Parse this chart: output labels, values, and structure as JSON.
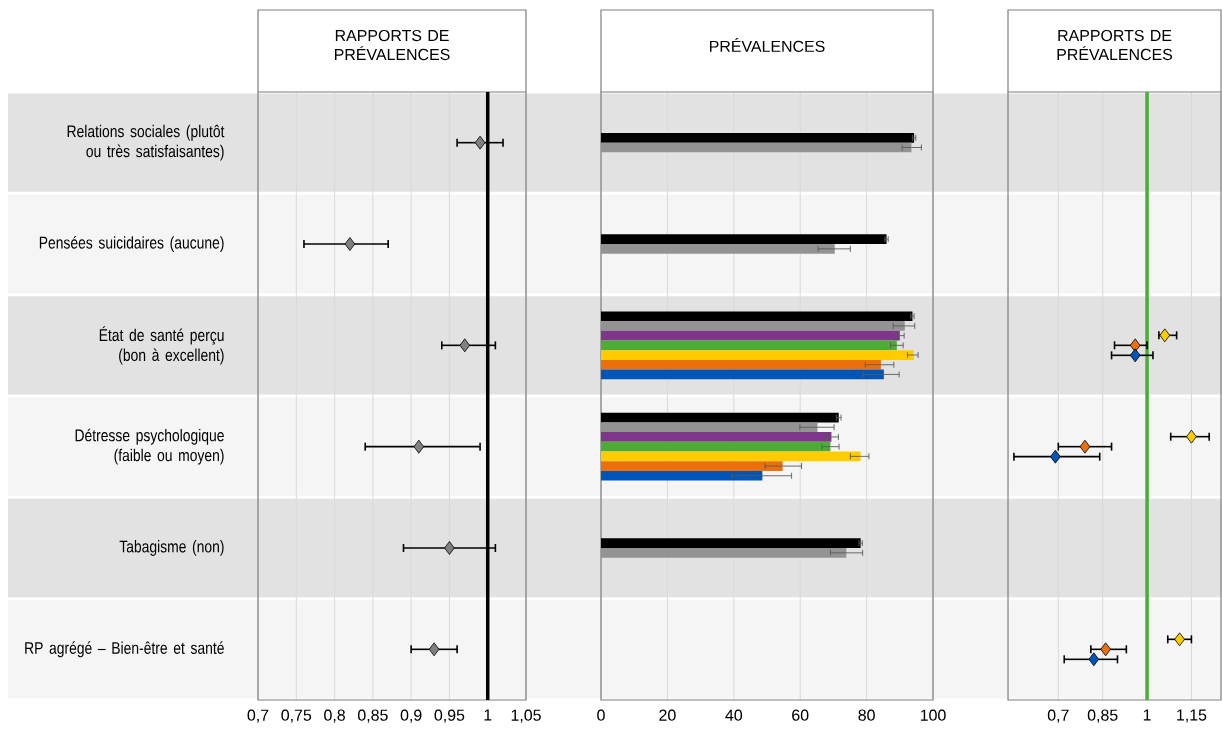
{
  "chart_data": [
    {
      "type": "scatter",
      "orientation": "horizontal",
      "title": "RAPPORTS DE PRÉVALENCES",
      "categories": [
        "Relations sociales (plutôt ou très satisfaisantes)",
        "Pensées suicidaires (aucune)",
        "État de santé perçu (bon à excellent)",
        "Détresse psychologique (faible ou moyen)",
        "Tabagisme (non)",
        "RP agrégé – Bien-être et santé"
      ],
      "values": [
        0.99,
        0.82,
        0.97,
        0.91,
        0.95,
        0.93
      ],
      "errors": [
        [
          0.96,
          1.02
        ],
        [
          0.76,
          0.87
        ],
        [
          0.94,
          1.01
        ],
        [
          0.84,
          0.99
        ],
        [
          0.89,
          1.01
        ],
        [
          0.9,
          0.96
        ]
      ],
      "color": "#808080",
      "marker": "diamond",
      "xlim": [
        0.7,
        1.05
      ],
      "xticks": [
        {
          "value": 0.7,
          "label": "0,7"
        },
        {
          "value": 0.75,
          "label": "0,75"
        },
        {
          "value": 0.8,
          "label": "0,8"
        },
        {
          "value": 0.85,
          "label": "0,85"
        },
        {
          "value": 0.9,
          "label": "0,9"
        },
        {
          "value": 0.95,
          "label": "0,95"
        },
        1,
        {
          "value": 1.05,
          "label": "1,05"
        }
      ],
      "ref_lines": [
        {
          "axis": "x",
          "value": 1,
          "color": "#000000"
        }
      ],
      "grid": "x"
    },
    {
      "type": "bar",
      "orientation": "horizontal",
      "title": "PRÉVALENCES",
      "tick_labels": "x",
      "series": [
        {
          "color": "#000000",
          "values": [
            94.3,
            86.0,
            93.8,
            71.6,
            78.2,
            null
          ],
          "errors": [
            0.5,
            0.5,
            0.5,
            0.7,
            0.5,
            null
          ]
        },
        {
          "color": "#939393",
          "values": [
            93.5,
            70.4,
            91.5,
            65.2,
            73.9,
            null
          ],
          "errors": [
            [
              90.7,
              96.5
            ],
            [
              65.4,
              75.1
            ],
            [
              88.0,
              94.5
            ],
            [
              59.9,
              70.2
            ],
            [
              69.1,
              78.8
            ],
            null
          ]
        },
        {
          "color": "#7d368a",
          "values": [
            null,
            null,
            90.0,
            69.4,
            null,
            null
          ],
          "errors": [
            null,
            null,
            [
              88.8,
              91.3
            ],
            [
              67.8,
              71.5
            ],
            null,
            null
          ]
        },
        {
          "color": "#4dac36",
          "values": [
            null,
            null,
            89.1,
            69.1,
            null,
            null
          ],
          "errors": [
            null,
            null,
            [
              87.2,
              91.0
            ],
            [
              66.5,
              71.7
            ],
            null,
            null
          ]
        },
        {
          "color": "#ffcc00",
          "values": [
            null,
            null,
            94.2,
            78.2,
            null,
            null
          ],
          "errors": [
            null,
            null,
            [
              92.3,
              95.5
            ],
            [
              75.1,
              80.7
            ],
            null,
            null
          ]
        },
        {
          "color": "#ec6f0d",
          "values": [
            null,
            null,
            84.3,
            54.7,
            null,
            null
          ],
          "errors": [
            null,
            null,
            [
              79.6,
              88.2
            ],
            [
              49.4,
              60.4
            ],
            null,
            null
          ]
        },
        {
          "color": "#0055b8",
          "values": [
            null,
            null,
            85.2,
            48.6,
            null,
            null
          ],
          "errors": [
            null,
            null,
            [
              78.9,
              89.8
            ],
            [
              39.5,
              57.4
            ],
            null,
            null
          ]
        }
      ],
      "xlim": [
        0,
        100
      ],
      "xticks": [
        0,
        20,
        40,
        60,
        80,
        100
      ],
      "grid": "x"
    },
    {
      "type": "scatter",
      "orientation": "horizontal",
      "title": "RAPPORTS DE PRÉVALENCES",
      "tick_labels": "x",
      "marker": "diamond",
      "series": [
        {
          "color": "#ffcc00",
          "values": [
            null,
            null,
            1.06,
            1.15,
            null,
            1.11
          ],
          "errors": [
            null,
            null,
            [
              1.04,
              1.1
            ],
            [
              1.08,
              1.21
            ],
            null,
            [
              1.07,
              1.15
            ]
          ]
        },
        {
          "color": "#ec6f0d",
          "values": [
            null,
            null,
            0.96,
            0.79,
            null,
            0.86
          ],
          "errors": [
            null,
            null,
            [
              0.89,
              1.0
            ],
            [
              0.7,
              0.88
            ],
            null,
            [
              0.81,
              0.93
            ]
          ]
        },
        {
          "color": "#0055b8",
          "values": [
            null,
            null,
            0.96,
            0.69,
            null,
            0.82
          ],
          "errors": [
            null,
            null,
            [
              0.88,
              1.02
            ],
            [
              0.55,
              0.84
            ],
            null,
            [
              0.72,
              0.9
            ]
          ]
        }
      ],
      "xlim": [
        0.53,
        1.25
      ],
      "xticks": [
        {
          "value": 0.7,
          "label": "0,7"
        },
        {
          "value": 0.85,
          "label": "0,85"
        },
        1,
        {
          "value": 1.15,
          "label": "1,15"
        }
      ],
      "ref_lines": [
        {
          "axis": "x",
          "value": 1,
          "color": "#4aad3a"
        }
      ],
      "grid": "x"
    }
  ]
}
